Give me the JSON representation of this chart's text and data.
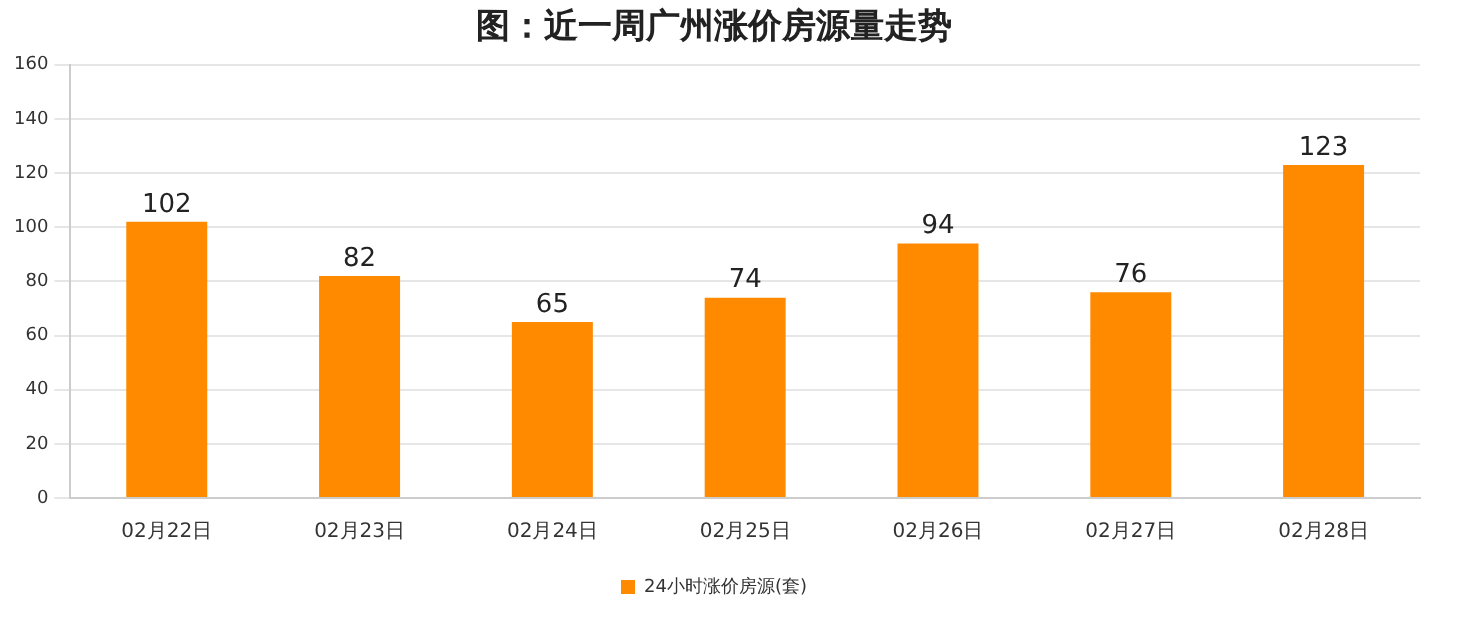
{
  "chart_data": {
    "type": "bar",
    "title": "图：近一周广州涨价房源量走势",
    "categories": [
      "02月22日",
      "02月23日",
      "02月24日",
      "02月25日",
      "02月26日",
      "02月27日",
      "02月28日"
    ],
    "series": [
      {
        "name": "24小时涨价房源(套)",
        "color": "#ff8a00",
        "values": [
          102,
          82,
          65,
          74,
          94,
          76,
          123
        ]
      }
    ],
    "ylim": [
      0,
      160
    ],
    "yticks": [
      0,
      20,
      40,
      60,
      80,
      100,
      120,
      140,
      160
    ],
    "grid": "y",
    "legend": "bottom",
    "data_labels": true
  }
}
